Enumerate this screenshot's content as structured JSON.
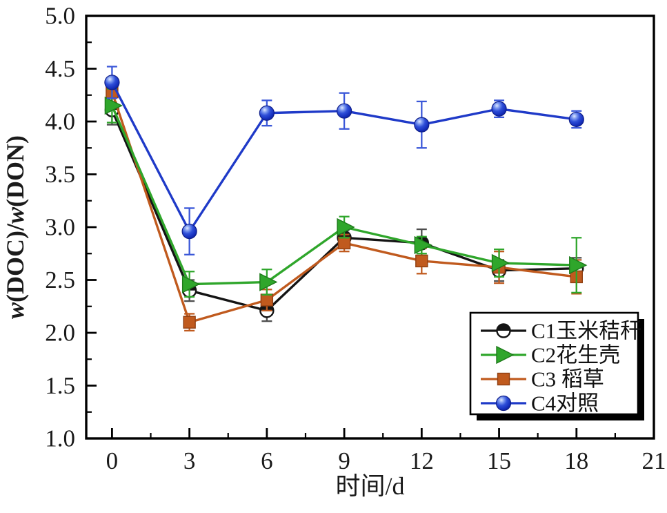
{
  "chart_data": {
    "type": "line",
    "title": "",
    "xlabel": "时间/d",
    "ylabel": "w(DOC)/w(DON)",
    "ylabel_parts": [
      {
        "text": "w",
        "italic": true
      },
      {
        "text": "(DOC)/",
        "italic": false
      },
      {
        "text": "w",
        "italic": true
      },
      {
        "text": "(DON)",
        "italic": false
      }
    ],
    "x": [
      0,
      3,
      6,
      9,
      12,
      15,
      18
    ],
    "xlim": [
      -1,
      21
    ],
    "ylim": [
      1.0,
      5.0
    ],
    "x_major_ticks": [
      0,
      3,
      6,
      9,
      12,
      15,
      18,
      21
    ],
    "x_minor_ticks": [
      1.5,
      4.5,
      7.5,
      10.5,
      13.5,
      16.5,
      19.5
    ],
    "y_major_ticks": [
      1.0,
      1.5,
      2.0,
      2.5,
      3.0,
      3.5,
      4.0,
      4.5,
      5.0
    ],
    "y_minor_ticks": [
      1.25,
      1.75,
      2.25,
      2.75,
      3.25,
      3.75,
      4.25,
      4.75
    ],
    "y_tick_decimals": 1,
    "grid": false,
    "axis_color": "#000000",
    "background": "#ffffff",
    "legend": {
      "position": "inside-lower-right",
      "background": "#ffffff",
      "border_color": "#000000",
      "shadow_color": "#000000",
      "entries": [
        "C1玉米秸秆",
        "C2花生壳",
        "C3 稻草",
        "C4对照"
      ]
    },
    "series": [
      {
        "name": "C1玉米秸秆",
        "marker": "half-filled-circle",
        "color": "#141414",
        "error_color": "#4d4d4d",
        "values": [
          4.11,
          2.4,
          2.21,
          2.9,
          2.85,
          2.59,
          2.61
        ],
        "errors": [
          0.14,
          0.1,
          0.1,
          0.07,
          0.13,
          0.1,
          0.1
        ]
      },
      {
        "name": "C2花生壳",
        "marker": "triangle-right",
        "color": "#2fa62b",
        "error_color": "#2fa62b",
        "values": [
          4.15,
          2.46,
          2.48,
          3.0,
          2.83,
          2.66,
          2.64
        ],
        "errors": [
          0.16,
          0.12,
          0.12,
          0.1,
          0.08,
          0.13,
          0.26
        ]
      },
      {
        "name": "C3 稻草",
        "marker": "square",
        "color": "#c05a1e",
        "error_color": "#c05a1e",
        "values": [
          4.28,
          2.1,
          2.31,
          2.85,
          2.68,
          2.62,
          2.53
        ],
        "errors": [
          0.1,
          0.08,
          0.1,
          0.08,
          0.12,
          0.15,
          0.16
        ]
      },
      {
        "name": "C4对照",
        "marker": "sphere-circle",
        "color": "#1f3ac8",
        "error_color": "#3a57d8",
        "values": [
          4.37,
          2.96,
          4.08,
          4.1,
          3.97,
          4.12,
          4.02
        ],
        "errors": [
          0.15,
          0.22,
          0.12,
          0.17,
          0.22,
          0.08,
          0.08
        ]
      }
    ],
    "draw_order": [
      0,
      2,
      1,
      3
    ]
  }
}
